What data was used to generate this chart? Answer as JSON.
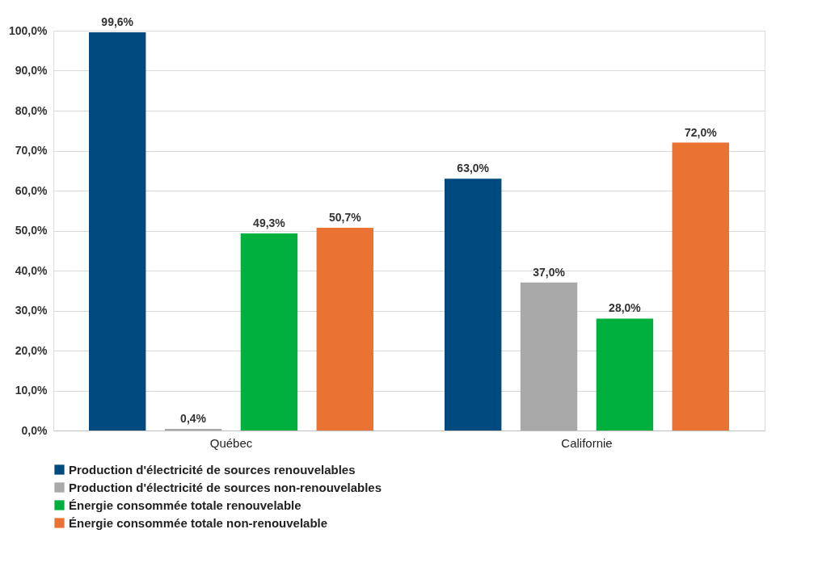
{
  "chart_data": {
    "type": "bar",
    "categories": [
      "Québec",
      "Californie"
    ],
    "series": [
      {
        "name": "Production d'électricité de sources renouvelables",
        "color": "#004a7f",
        "values": [
          99.6,
          63.0
        ],
        "value_labels": [
          "99,6%",
          "63,0%"
        ]
      },
      {
        "name": "Production d'électricité de sources non-renouvelables",
        "color": "#a9a9a9",
        "values": [
          0.4,
          37.0
        ],
        "value_labels": [
          "0,4%",
          "37,0%"
        ]
      },
      {
        "name": "Énergie consommée totale renouvelable",
        "color": "#00b03f",
        "values": [
          49.3,
          28.0
        ],
        "value_labels": [
          "49,3%",
          "28,0%"
        ]
      },
      {
        "name": "Énergie consommée totale non-renouvelable",
        "color": "#ea7233",
        "values": [
          50.7,
          72.0
        ],
        "value_labels": [
          "50,7%",
          "72,0%"
        ]
      }
    ],
    "ylim": [
      0,
      100
    ],
    "yticks": [
      {
        "value": 0,
        "label": "0,0%"
      },
      {
        "value": 10,
        "label": "10,0%"
      },
      {
        "value": 20,
        "label": "20,0%"
      },
      {
        "value": 30,
        "label": "30,0%"
      },
      {
        "value": 40,
        "label": "40,0%"
      },
      {
        "value": 50,
        "label": "50,0%"
      },
      {
        "value": 60,
        "label": "60,0%"
      },
      {
        "value": 70,
        "label": "70,0%"
      },
      {
        "value": 80,
        "label": "80,0%"
      },
      {
        "value": 90,
        "label": "90,0%"
      },
      {
        "value": 100,
        "label": "100,0%"
      }
    ],
    "grid": "y",
    "legend": "bottom"
  }
}
